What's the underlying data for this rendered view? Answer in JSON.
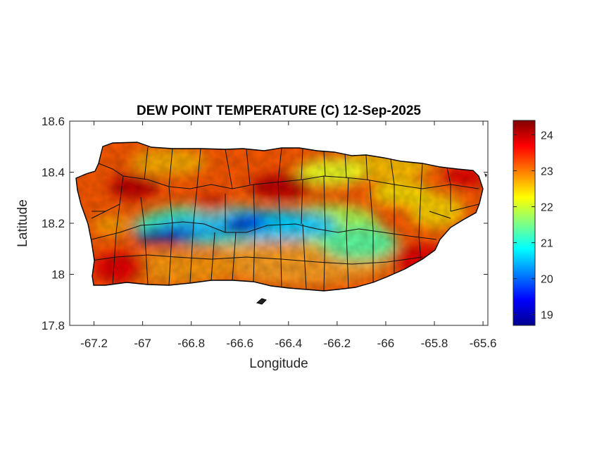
{
  "chart_data": {
    "type": "heatmap",
    "title": "DEW POINT TEMPERATURE (C) 12-Sep-2025",
    "xlabel": "Longitude",
    "ylabel": "Latitude",
    "xlim": [
      -67.3,
      -65.58
    ],
    "ylim": [
      17.8,
      18.6
    ],
    "xticks": [
      -67.2,
      -67,
      -66.8,
      -66.6,
      -66.4,
      -66.2,
      -66,
      -65.8,
      -65.6
    ],
    "xtick_labels": [
      "-67.2",
      "-67",
      "-66.8",
      "-66.6",
      "-66.4",
      "-66.2",
      "-66",
      "-65.8",
      "-65.6"
    ],
    "yticks": [
      17.8,
      18,
      18.2,
      18.4,
      18.6
    ],
    "ytick_labels": [
      "17.8",
      "18",
      "18.2",
      "18.4",
      "18.6"
    ],
    "colorbar": {
      "colormap": "jet",
      "min": 18.7,
      "max": 24.4,
      "ticks": [
        19,
        20,
        21,
        22,
        23,
        24
      ],
      "tick_labels": [
        "19",
        "20",
        "21",
        "22",
        "23",
        "24"
      ]
    },
    "field_features": [
      {
        "lon": -66.9,
        "lat": 18.17,
        "value": 19.6
      },
      {
        "lon": -66.58,
        "lat": 18.18,
        "value": 19.8
      },
      {
        "lon": -66.75,
        "lat": 18.2,
        "value": 20.8
      },
      {
        "lon": -66.4,
        "lat": 18.19,
        "value": 21.2
      },
      {
        "lon": -66.15,
        "lat": 18.12,
        "value": 21.6
      },
      {
        "lon": -65.85,
        "lat": 18.3,
        "value": 21.9
      },
      {
        "lon": -66.1,
        "lat": 18.42,
        "value": 22.4
      },
      {
        "lon": -67.1,
        "lat": 18.35,
        "value": 24.2
      },
      {
        "lon": -66.47,
        "lat": 18.34,
        "value": 24.1
      },
      {
        "lon": -67.15,
        "lat": 18.05,
        "value": 23.8
      },
      {
        "lon": -65.75,
        "lat": 18.1,
        "value": 23.6
      },
      {
        "lon": -65.85,
        "lat": 18.42,
        "value": 23.5
      }
    ]
  }
}
